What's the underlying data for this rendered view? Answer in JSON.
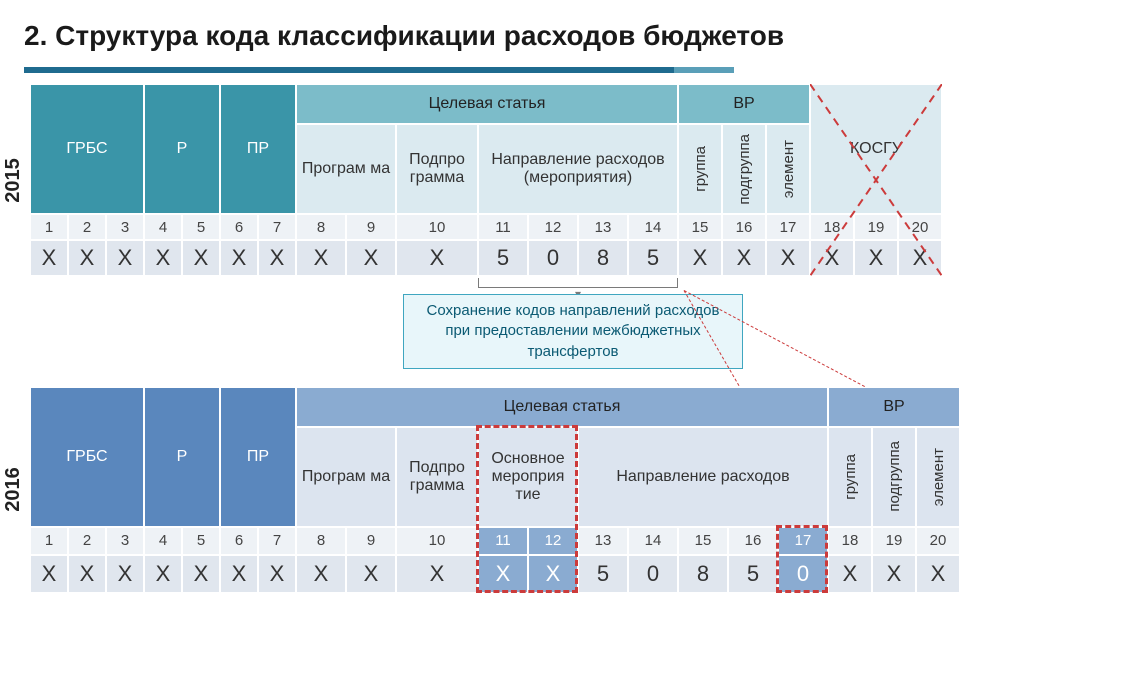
{
  "title": "2. Структура кода классификации расходов бюджетов",
  "title_underline": {
    "seg1_width": 650,
    "seg2_width": 60,
    "color1": "#1f6b8f",
    "color2": "#5a9fb8"
  },
  "years": {
    "y2015": "2015",
    "y2016": "2016"
  },
  "colwidths": {
    "grbs": [
      38,
      38,
      38
    ],
    "r": [
      38,
      38
    ],
    "pr": [
      38,
      38
    ],
    "prog": [
      50,
      50
    ],
    "podpr": [
      82
    ],
    "napr15": [
      50,
      50,
      50,
      50
    ],
    "bp": [
      44,
      44,
      44
    ],
    "kosgu": [
      44,
      44,
      44
    ],
    "osn": [
      50,
      50
    ],
    "napr16": [
      50,
      50,
      50,
      50,
      50
    ],
    "bp16": [
      44,
      44,
      44
    ]
  },
  "headers15": {
    "grbs": "ГРБС",
    "r": "Р",
    "pr": "ПР",
    "target": "Целевая статья",
    "bp": "ВР",
    "kosgu": "КОСГУ",
    "prog": "Програм ма",
    "podpr": "Подпро грамма",
    "napr": "Направление расходов (мероприятия)",
    "bp_sub": [
      "группа",
      "подгруппа",
      "элемент"
    ]
  },
  "numbers15": [
    "1",
    "2",
    "3",
    "4",
    "5",
    "6",
    "7",
    "8",
    "9",
    "10",
    "11",
    "12",
    "13",
    "14",
    "15",
    "16",
    "17",
    "18",
    "19",
    "20"
  ],
  "values15": [
    "X",
    "X",
    "X",
    "X",
    "X",
    "X",
    "X",
    "X",
    "X",
    "X",
    "5",
    "0",
    "8",
    "5",
    "X",
    "X",
    "X",
    "X",
    "X",
    "X"
  ],
  "note": "Сохранение кодов направлений расходов при предоставлении межбюджетных трансфертов",
  "headers16": {
    "grbs": "ГРБС",
    "r": "Р",
    "pr": "ПР",
    "target": "Целевая статья",
    "bp": "ВР",
    "prog": "Програм ма",
    "podpr": "Подпро грамма",
    "osn": "Основное мероприя тие",
    "napr": "Направление расходов",
    "bp_sub": [
      "группа",
      "подгруппа",
      "элемент"
    ]
  },
  "numbers16": [
    "1",
    "2",
    "3",
    "4",
    "5",
    "6",
    "7",
    "8",
    "9",
    "10",
    "11",
    "12",
    "13",
    "14",
    "15",
    "16",
    "17",
    "18",
    "19",
    "20"
  ],
  "values16": [
    "X",
    "X",
    "X",
    "X",
    "X",
    "X",
    "X",
    "X",
    "X",
    "X",
    "X",
    "X",
    "5",
    "0",
    "8",
    "5",
    "0",
    "X",
    "X",
    "X"
  ],
  "styling": {
    "font": "Arial",
    "palette_2015": {
      "dark": "#3a95a8",
      "light": "#7cbcc9",
      "pale": "#dbeaf0"
    },
    "palette_2016": {
      "dark": "#5a87bd",
      "light": "#8aabd1",
      "pale": "#dce4ef"
    },
    "num_row_bg": "#eef2f6",
    "val_row_bg": "#e0e6ee",
    "red_dash": "#cc3b3b"
  }
}
